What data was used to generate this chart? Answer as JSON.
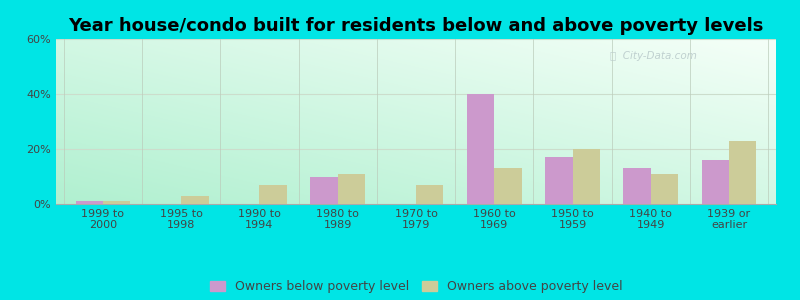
{
  "title": "Year house/condo built for residents below and above poverty levels",
  "categories": [
    "1999 to\n2000",
    "1995 to\n1998",
    "1990 to\n1994",
    "1980 to\n1989",
    "1970 to\n1979",
    "1960 to\n1969",
    "1950 to\n1959",
    "1940 to\n1949",
    "1939 or\nearlier"
  ],
  "below_poverty": [
    1,
    0,
    0,
    10,
    0,
    40,
    17,
    13,
    16
  ],
  "above_poverty": [
    1,
    3,
    7,
    11,
    7,
    13,
    20,
    11,
    23
  ],
  "below_color": "#cc99cc",
  "above_color": "#cccc99",
  "background_outer": "#00e5e5",
  "ylim": [
    0,
    60
  ],
  "yticks": [
    0,
    20,
    40,
    60
  ],
  "ytick_labels": [
    "0%",
    "20%",
    "40%",
    "60%"
  ],
  "bar_width": 0.35,
  "legend_below_label": "Owners below poverty level",
  "legend_above_label": "Owners above poverty level",
  "title_fontsize": 13,
  "tick_fontsize": 8,
  "legend_fontsize": 9,
  "grid_color": "#ccddcc",
  "watermark_color": "#bbcccc"
}
